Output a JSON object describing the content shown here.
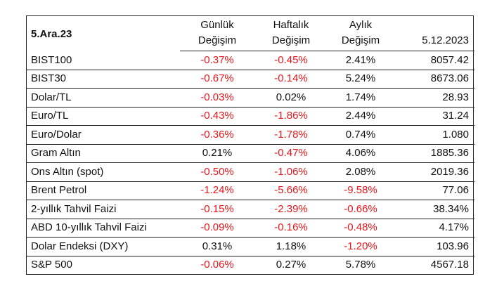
{
  "colors": {
    "negative": "#e8161b",
    "positive": "#111111",
    "border": "#222222"
  },
  "header": {
    "title": "5.Ara.23",
    "col1_line1": "Günlük",
    "col1_line2": "Değişim",
    "col2_line1": "Haftalık",
    "col2_line2": "Değişim",
    "col3_line1": "Aylık",
    "col3_line2": "Değişim",
    "date": "5.12.2023"
  },
  "rows": [
    {
      "name": "BIST100",
      "daily": "-0.37%",
      "weekly": "-0.45%",
      "monthly": "2.41%",
      "value": "8057.42"
    },
    {
      "name": "BIST30",
      "daily": "-0.67%",
      "weekly": "-0.14%",
      "monthly": "5.24%",
      "value": "8673.06"
    },
    {
      "name": "Dolar/TL",
      "daily": "-0.03%",
      "weekly": "0.02%",
      "monthly": "1.74%",
      "value": "28.93"
    },
    {
      "name": "Euro/TL",
      "daily": "-0.43%",
      "weekly": "-1.86%",
      "monthly": "2.44%",
      "value": "31.24"
    },
    {
      "name": "Euro/Dolar",
      "daily": "-0.36%",
      "weekly": "-1.78%",
      "monthly": "0.74%",
      "value": "1.080"
    },
    {
      "name": "Gram Altın",
      "daily": "0.21%",
      "weekly": "-0.47%",
      "monthly": "4.06%",
      "value": "1885.36"
    },
    {
      "name": "Ons Altın (spot)",
      "daily": "-0.50%",
      "weekly": "-1.06%",
      "monthly": "2.08%",
      "value": "2019.36"
    },
    {
      "name": "Brent Petrol",
      "daily": "-1.24%",
      "weekly": "-5.66%",
      "monthly": "-9.58%",
      "value": "77.06"
    },
    {
      "name": "2-yıllık Tahvil Faizi",
      "daily": "-0.15%",
      "weekly": "-2.39%",
      "monthly": "-0.66%",
      "value": "38.34%"
    },
    {
      "name": "ABD 10-yıllık Tahvil Faizi",
      "daily": "-0.09%",
      "weekly": "-0.16%",
      "monthly": "-0.48%",
      "value": "4.17%"
    },
    {
      "name": "Dolar Endeksi (DXY)",
      "daily": "0.31%",
      "weekly": "1.18%",
      "monthly": "-1.20%",
      "value": "103.96"
    },
    {
      "name": "S&P 500",
      "daily": "-0.06%",
      "weekly": "0.27%",
      "monthly": "5.78%",
      "value": "4567.18"
    }
  ]
}
